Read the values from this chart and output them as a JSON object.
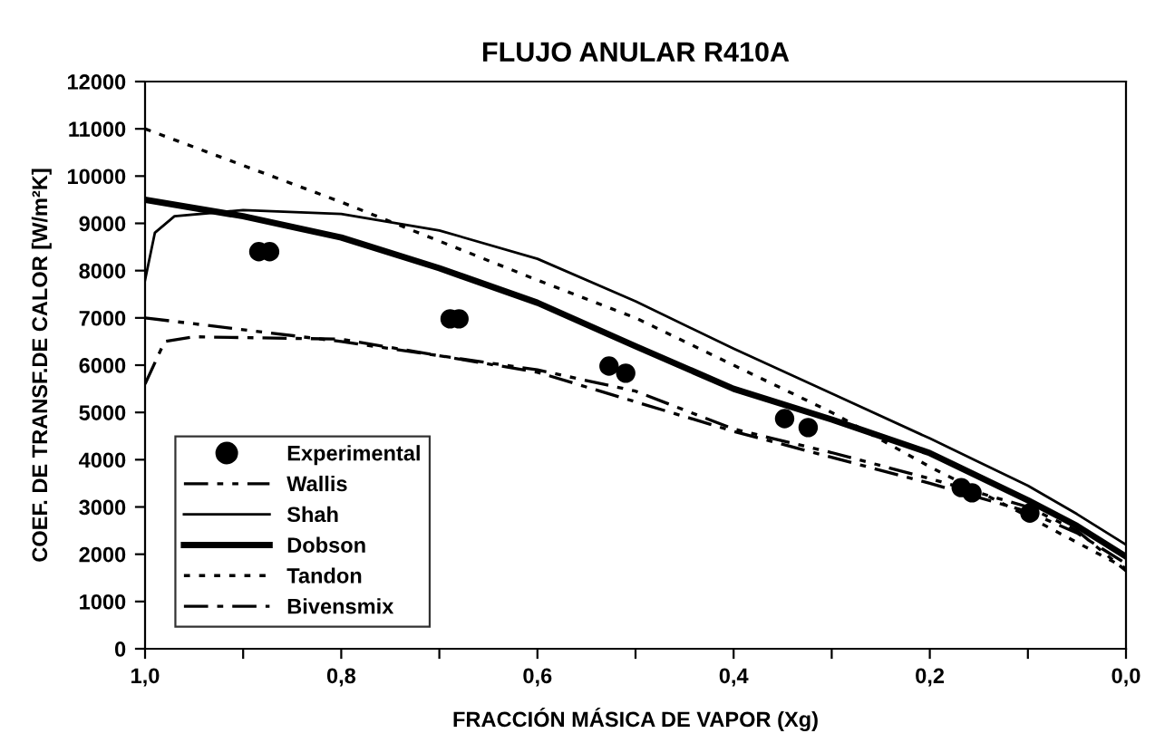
{
  "chart_data": {
    "type": "line",
    "title": "FLUJO ANULAR R410A",
    "xlabel": "FRACCIÓN MÁSICA DE VAPOR (Xg)",
    "ylabel": "COEF. DE TRANSF.DE CALOR [W/m²K]",
    "xlim": [
      1.0,
      0.0
    ],
    "xticks": [
      {
        "value": 1.0,
        "label": "1,0"
      },
      {
        "value": 0.9,
        "label": null
      },
      {
        "value": 0.8,
        "label": "0,8"
      },
      {
        "value": 0.7,
        "label": null
      },
      {
        "value": 0.6,
        "label": "0,6"
      },
      {
        "value": 0.5,
        "label": null
      },
      {
        "value": 0.4,
        "label": "0,4"
      },
      {
        "value": 0.3,
        "label": null
      },
      {
        "value": 0.2,
        "label": "0,2"
      },
      {
        "value": 0.1,
        "label": null
      },
      {
        "value": 0.0,
        "label": "0,0"
      }
    ],
    "ylim": [
      0,
      12000
    ],
    "yticks": [
      0,
      1000,
      2000,
      3000,
      4000,
      5000,
      6000,
      7000,
      8000,
      9000,
      10000,
      11000,
      12000
    ],
    "grid": false,
    "legend": "bottom left",
    "series": [
      {
        "name": "Experimental",
        "type": "scatter",
        "marker": "circle",
        "color": "#000000",
        "x": [
          0.884,
          0.873,
          0.689,
          0.68,
          0.527,
          0.51,
          0.348,
          0.324,
          0.168,
          0.157,
          0.098
        ],
        "values": [
          8400,
          8400,
          6980,
          6980,
          5980,
          5830,
          4870,
          4680,
          3410,
          3300,
          2870
        ]
      },
      {
        "name": "Wallis",
        "line_style": "dashdotdot",
        "color": "#000000",
        "x": [
          1.0,
          0.8,
          0.6,
          0.5,
          0.4,
          0.3,
          0.2,
          0.1,
          0.05,
          0.0
        ],
        "values": [
          7000,
          6500,
          5900,
          5450,
          4650,
          4150,
          3600,
          3000,
          2500,
          1650
        ]
      },
      {
        "name": "Shah",
        "line_style": "solid",
        "color": "#000000",
        "x": [
          1.0,
          0.99,
          0.97,
          0.9,
          0.8,
          0.7,
          0.6,
          0.5,
          0.4,
          0.3,
          0.2,
          0.1,
          0.05,
          0.0
        ],
        "values": [
          7800,
          8800,
          9150,
          9280,
          9200,
          8850,
          8250,
          7350,
          6350,
          5400,
          4450,
          3450,
          2850,
          2200
        ]
      },
      {
        "name": "Dobson",
        "line_style": "solid",
        "color": "#000000",
        "x": [
          1.0,
          0.9,
          0.8,
          0.7,
          0.6,
          0.5,
          0.4,
          0.3,
          0.2,
          0.1,
          0.05,
          0.0
        ],
        "values": [
          9500,
          9150,
          8700,
          8050,
          7320,
          6400,
          5500,
          4850,
          4140,
          3140,
          2600,
          1950
        ]
      },
      {
        "name": "Tandon",
        "line_style": "dotted",
        "color": "#000000",
        "x": [
          1.0,
          0.8,
          0.6,
          0.5,
          0.4,
          0.3,
          0.2,
          0.1,
          0.0
        ],
        "values": [
          11000,
          9450,
          7800,
          7000,
          6000,
          5000,
          3850,
          2800,
          1700
        ]
      },
      {
        "name": "Bivensmix",
        "line_style": "dashdot",
        "color": "#000000",
        "x": [
          1.0,
          0.98,
          0.95,
          0.8,
          0.6,
          0.4,
          0.2,
          0.1,
          0.05,
          0.0
        ],
        "values": [
          5600,
          6500,
          6600,
          6550,
          5850,
          4600,
          3500,
          2900,
          2450,
          1800
        ]
      }
    ]
  }
}
